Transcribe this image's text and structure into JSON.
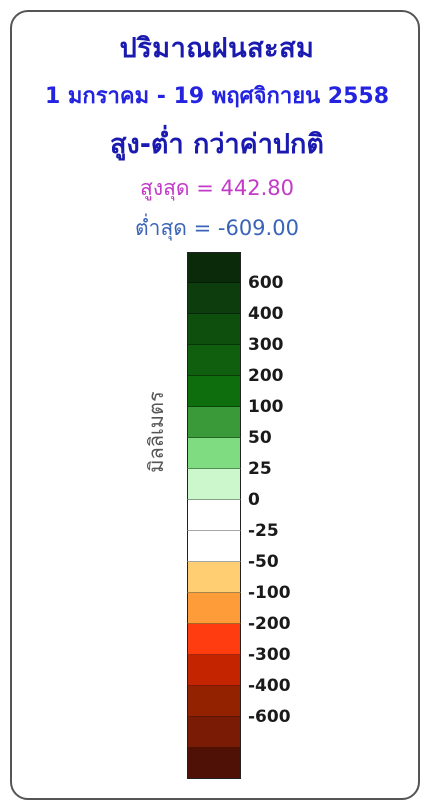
{
  "legend": {
    "title_line1": "ปริมาณฝนสะสม",
    "title_line2": "1 มกราคม - 19 พฤศจิกายน 2558",
    "title_line3": "สูง-ต่ำ กว่าค่าปกติ",
    "max_label": "สูงสุด = 442.80",
    "min_label": "ต่ำสุด = -609.00",
    "unit_label": "มิลลิเมตร",
    "colors": [
      "#0a2a0a",
      "#0d3d0d",
      "#0e4f0e",
      "#0f5f0f",
      "#0e6e0e",
      "#3a9a3a",
      "#80dc80",
      "#ccf7cc",
      "#ffffff",
      "#ffffff",
      "#ffce73",
      "#ff9c3a",
      "#ff3b10",
      "#c42400",
      "#932200",
      "#7a1b05",
      "#4f1006"
    ],
    "tick_labels": [
      "600",
      "400",
      "300",
      "200",
      "100",
      "50",
      "25",
      "0",
      "-25",
      "-50",
      "-100",
      "-200",
      "-300",
      "-400",
      "-600"
    ]
  }
}
